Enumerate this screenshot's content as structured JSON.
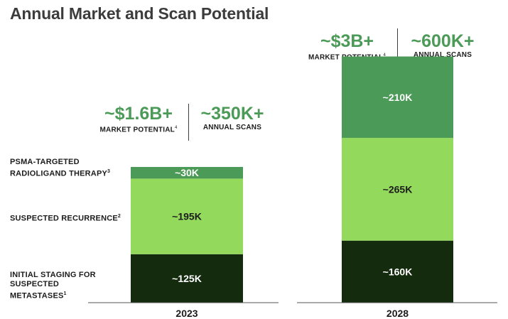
{
  "title": "Annual Market and Scan Potential",
  "categories_labels": [
    {
      "text": "PSMA-TARGETED RADIOLIGAND THERAPY",
      "sup": "3"
    },
    {
      "text": "SUSPECTED RECURRENCE",
      "sup": "2"
    },
    {
      "text": "INITIAL STAGING FOR SUSPECTED METASTASES",
      "sup": "1"
    }
  ],
  "callouts": [
    {
      "year": "2023",
      "market_value": "~$1.6B+",
      "market_label": "MARKET POTENTIAL",
      "market_sup": "4",
      "scans_value": "~350K+",
      "scans_label": "ANNUAL SCANS"
    },
    {
      "year": "2028",
      "market_value": "~$3B+",
      "market_label": "MARKET POTENTIAL",
      "market_sup": "4",
      "scans_value": "~600K+",
      "scans_label": "ANNUAL SCANS"
    }
  ],
  "colors": {
    "initial_staging": "#142b0e",
    "suspected_recurrence": "#92d95c",
    "radioligand_therapy": "#4c9a57",
    "accent_text": "#4c9a57"
  },
  "chart_data": {
    "type": "bar",
    "stacked": true,
    "categories": [
      "2023",
      "2028"
    ],
    "series": [
      {
        "name": "INITIAL STAGING FOR SUSPECTED METASTASES",
        "values": [
          125,
          160
        ],
        "labels": [
          "~125K",
          "~160K"
        ],
        "color": "#142b0e"
      },
      {
        "name": "SUSPECTED RECURRENCE",
        "values": [
          195,
          265
        ],
        "labels": [
          "~195K",
          "~265K"
        ],
        "color": "#92d95c"
      },
      {
        "name": "PSMA-TARGETED RADIOLIGAND THERAPY",
        "values": [
          30,
          210
        ],
        "labels": [
          "~30K",
          "~210K"
        ],
        "color": "#4c9a57"
      }
    ],
    "title": "Annual Market and Scan Potential",
    "ylim": [
      0,
      640
    ],
    "grid": false
  }
}
